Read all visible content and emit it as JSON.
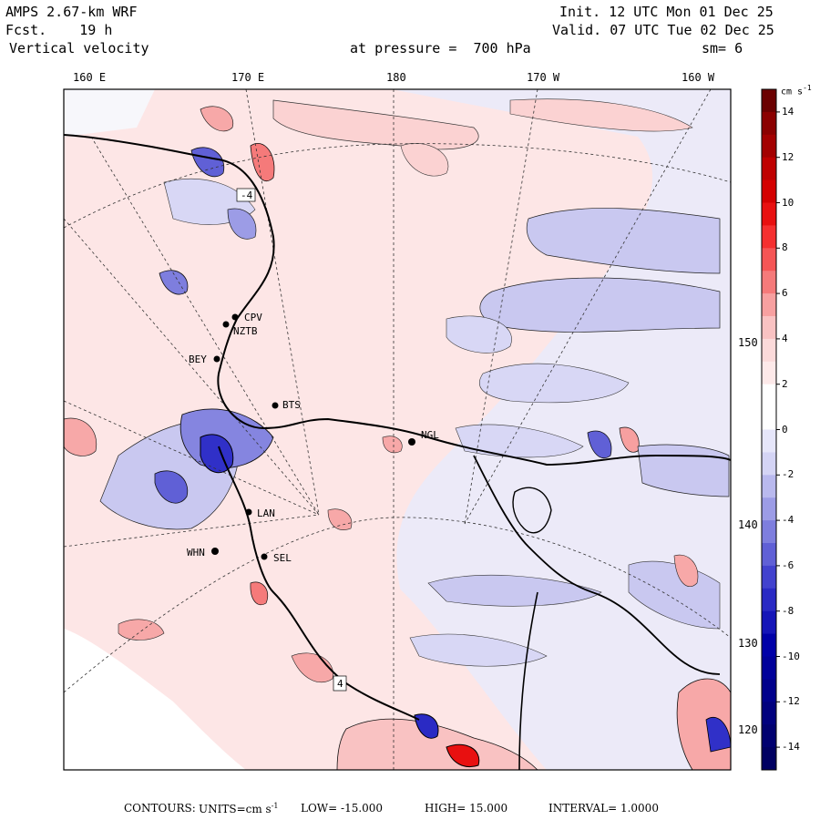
{
  "header": {
    "model": "AMPS 2.67-km WRF",
    "fcst_label": "Fcst.",
    "fcst_value": "19 h",
    "field": "Vertical velocity",
    "init": "Init. 12 UTC Mon 01 Dec 25",
    "valid": "Valid. 07 UTC Tue 02 Dec 25",
    "level_label": "at pressure =",
    "level_value": "700 hPa",
    "smoothing": "sm= 6"
  },
  "longitude_labels": [
    "160 E",
    "170 E",
    "180",
    "170 W",
    "160 W"
  ],
  "right_labels": [
    "150 W",
    "140 W",
    "130 W",
    "120 W"
  ],
  "stations": [
    "CPV",
    "NZTB",
    "BEY",
    "BTS",
    "NGL",
    "LAN",
    "WHN",
    "SEL"
  ],
  "contour_labels": [
    "-4",
    "4"
  ],
  "colorbar": {
    "units": "cm s",
    "units_exp": "-1",
    "ticks": [
      "14",
      "12",
      "10",
      "8",
      "6",
      "4",
      "2",
      "0",
      "-2",
      "-4",
      "-6",
      "-8",
      "-10",
      "-12",
      "-14"
    ],
    "colors": [
      "#6b0000",
      "#8b0000",
      "#a30000",
      "#bf0000",
      "#d40000",
      "#e81010",
      "#f53030",
      "#f55555",
      "#f57a7a",
      "#f7a0a0",
      "#f9c2c2",
      "#fbdada",
      "#fde9e9",
      "#ffffff",
      "#ffffff",
      "#e6e6fa",
      "#d4d4f5",
      "#b9b9ee",
      "#9c9ce6",
      "#7e7ede",
      "#6060d6",
      "#4242ce",
      "#2a2ac4",
      "#1515b8",
      "#0000a8",
      "#00009a",
      "#00008c",
      "#00007e",
      "#000070",
      "#000062"
    ],
    "colors_comment": "",
    "range": [
      -15,
      15
    ]
  },
  "footer": {
    "contours": "CONTOURS:",
    "units_label": "UNITS=cm s",
    "units_exp": "-1",
    "low": "LOW= -15.000",
    "high": "HIGH= 15.000",
    "interval": "INTERVAL= 1.0000"
  }
}
